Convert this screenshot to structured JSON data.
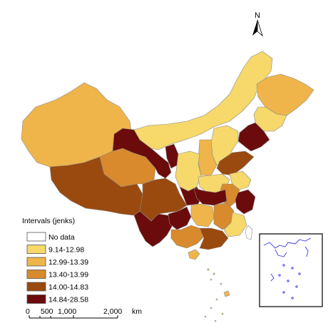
{
  "north_arrow": {
    "label": "N"
  },
  "legend": {
    "title": "Intervals (jenks)",
    "items": [
      {
        "label": "No data",
        "color": "#ffffff"
      },
      {
        "label": "9.14-12.98",
        "color": "#f6d86b"
      },
      {
        "label": "12.99-13.39",
        "color": "#efb54a"
      },
      {
        "label": "13.40-13.99",
        "color": "#d88a2c"
      },
      {
        "label": "14.00-14.83",
        "color": "#9a4a0e"
      },
      {
        "label": "14.84-28.58",
        "color": "#6b0b0b"
      }
    ]
  },
  "scale_bar": {
    "ticks": [
      "0",
      "500",
      "1,000",
      "2,000"
    ],
    "unit": "km"
  },
  "colors": {
    "border": "#8a8a8a",
    "inset_border": "#222222",
    "inset_features": "#3a3adf"
  }
}
